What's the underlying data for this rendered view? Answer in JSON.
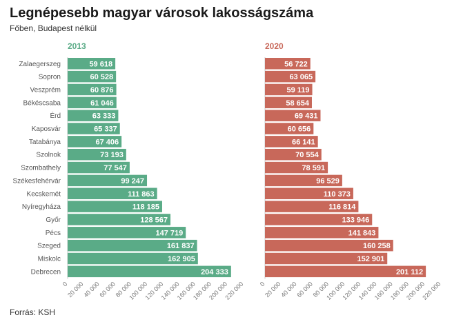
{
  "title": "Legnépesebb magyar városok lakosságszáma",
  "subtitle": "Főben, Budapest nélkül",
  "source": "Forrás: KSH",
  "colors": {
    "y2013": "#5aab87",
    "y2020": "#c8685a"
  },
  "chart_data": [
    {
      "type": "bar",
      "orientation": "horizontal",
      "title": "2013",
      "categories": [
        "Zalaegerszeg",
        "Sopron",
        "Veszprém",
        "Békéscsaba",
        "Érd",
        "Kaposvár",
        "Tatabánya",
        "Szolnok",
        "Szombathely",
        "Székesfehérvár",
        "Kecskemét",
        "Nyíregyháza",
        "Győr",
        "Pécs",
        "Szeged",
        "Miskolc",
        "Debrecen"
      ],
      "values": [
        59618,
        60528,
        60876,
        61046,
        63333,
        65337,
        67406,
        73193,
        77547,
        99247,
        111863,
        118185,
        128567,
        147719,
        161837,
        162905,
        204333
      ],
      "labels": [
        "59 618",
        "60 528",
        "60 876",
        "61 046",
        "63 333",
        "65 337",
        "67 406",
        "73 193",
        "77 547",
        "99 247",
        "111 863",
        "118 185",
        "128 567",
        "147 719",
        "161 837",
        "162 905",
        "204 333"
      ],
      "xlim": [
        0,
        220000
      ],
      "ticks": [
        0,
        20000,
        40000,
        60000,
        80000,
        100000,
        120000,
        140000,
        160000,
        180000,
        200000,
        220000
      ],
      "tick_labels": [
        "0",
        "20 000",
        "40 000",
        "60 000",
        "80 000",
        "100 000",
        "120 000",
        "140 000",
        "160 000",
        "180 000",
        "200 000",
        "220 000"
      ]
    },
    {
      "type": "bar",
      "orientation": "horizontal",
      "title": "2020",
      "categories": [
        "Zalaegerszeg",
        "Sopron",
        "Veszprém",
        "Békéscsaba",
        "Érd",
        "Kaposvár",
        "Tatabánya",
        "Szolnok",
        "Szombathely",
        "Székesfehérvár",
        "Kecskemét",
        "Nyíregyháza",
        "Győr",
        "Pécs",
        "Szeged",
        "Miskolc",
        "Debrecen"
      ],
      "values": [
        56722,
        63065,
        59119,
        58654,
        69431,
        60656,
        66141,
        70554,
        78591,
        96529,
        110373,
        116814,
        133946,
        141843,
        160258,
        152901,
        201112
      ],
      "labels": [
        "56 722",
        "63 065",
        "59 119",
        "58 654",
        "69 431",
        "60 656",
        "66 141",
        "70 554",
        "78 591",
        "96 529",
        "110 373",
        "116 814",
        "133 946",
        "141 843",
        "160 258",
        "152 901",
        "201 112"
      ],
      "xlim": [
        0,
        220000
      ],
      "ticks": [
        0,
        20000,
        40000,
        60000,
        80000,
        100000,
        120000,
        140000,
        160000,
        180000,
        200000,
        220000
      ],
      "tick_labels": [
        "0",
        "20 000",
        "40 000",
        "60 000",
        "80 000",
        "100 000",
        "120 000",
        "140 000",
        "160 000",
        "180 000",
        "200 000",
        "220 000"
      ]
    }
  ]
}
